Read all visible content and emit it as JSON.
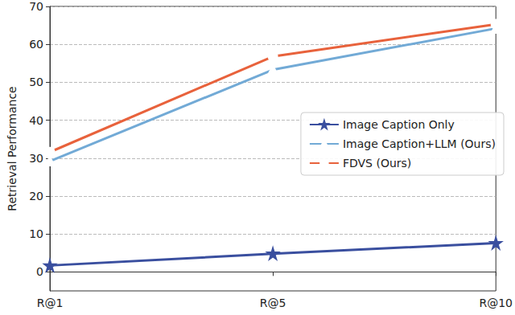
{
  "chart_data": {
    "type": "line",
    "y_label": "Retrieval Performance",
    "categories": [
      "R@1",
      "R@5",
      "R@10"
    ],
    "series": [
      {
        "name": "Image Caption Only",
        "color": "#3a4f9f",
        "marker": "star",
        "values": [
          1.7,
          4.8,
          7.6
        ]
      },
      {
        "name": "Image Caption+LLM (Ours)",
        "color": "#72aad6",
        "marker": "triangle",
        "values": [
          29.2,
          53.3,
          64.2
        ]
      },
      {
        "name": "FDVS (Ours)",
        "color": "#e8623c",
        "marker": "circle",
        "values": [
          31.6,
          56.8,
          65.3
        ]
      }
    ],
    "ylim": [
      -5,
      70
    ],
    "yticks": [
      0,
      10,
      20,
      30,
      40,
      50,
      60,
      70
    ],
    "grid": true,
    "legend": "right"
  }
}
